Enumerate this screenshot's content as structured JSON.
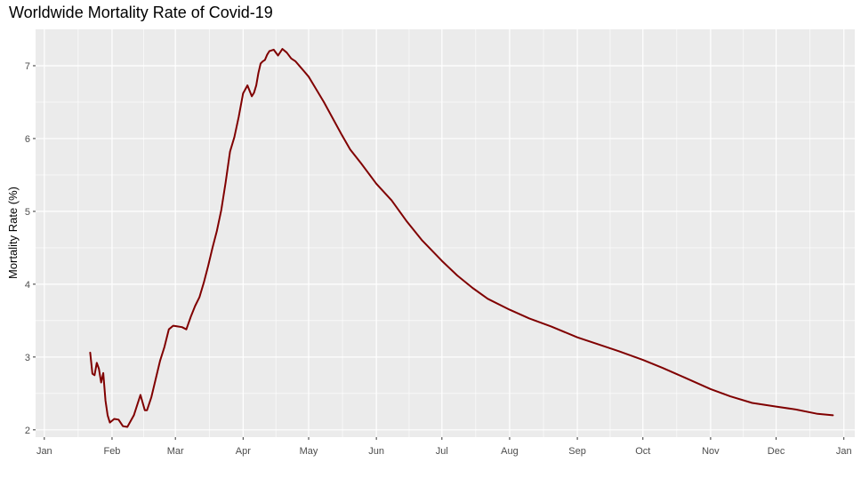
{
  "chart_data": {
    "type": "line",
    "title": "Worldwide Mortality Rate of Covid-19",
    "xlabel": "",
    "ylabel": "Mortality Rate (%)",
    "x_type": "date",
    "xlim": [
      "2019-12-28",
      "2021-01-06"
    ],
    "ylim": [
      1.9,
      7.5
    ],
    "x_ticks": [
      "Jan",
      "Feb",
      "Mar",
      "Apr",
      "May",
      "Jun",
      "Jul",
      "Aug",
      "Sep",
      "Oct",
      "Nov",
      "Dec",
      "Jan"
    ],
    "x_tick_dates": [
      "2020-01-01",
      "2020-02-01",
      "2020-03-01",
      "2020-04-01",
      "2020-05-01",
      "2020-06-01",
      "2020-07-01",
      "2020-08-01",
      "2020-09-01",
      "2020-10-01",
      "2020-11-01",
      "2020-12-01",
      "2021-01-01"
    ],
    "y_ticks": [
      2,
      3,
      4,
      5,
      6,
      7
    ],
    "grid": true,
    "legend": "none",
    "colors": {
      "line": "#800000",
      "panel": "#ebebeb",
      "grid": "#ffffff",
      "background": "#ffffff"
    },
    "series": [
      {
        "x": [
          "2020-01-22",
          "2020-01-23",
          "2020-01-24",
          "2020-01-25",
          "2020-01-26",
          "2020-01-27",
          "2020-01-28",
          "2020-01-29",
          "2020-01-30",
          "2020-01-31",
          "2020-02-02",
          "2020-02-04",
          "2020-02-06",
          "2020-02-08",
          "2020-02-11",
          "2020-02-14",
          "2020-02-16",
          "2020-02-17",
          "2020-02-19",
          "2020-02-21",
          "2020-02-23",
          "2020-02-25",
          "2020-02-27",
          "2020-02-29",
          "2020-03-02",
          "2020-03-04",
          "2020-03-06",
          "2020-03-08",
          "2020-03-10",
          "2020-03-12",
          "2020-03-14",
          "2020-03-16",
          "2020-03-18",
          "2020-03-20",
          "2020-03-22",
          "2020-03-24",
          "2020-03-26",
          "2020-03-28",
          "2020-03-30",
          "2020-04-01",
          "2020-04-03",
          "2020-04-05",
          "2020-04-06",
          "2020-04-07",
          "2020-04-08",
          "2020-04-09",
          "2020-04-10",
          "2020-04-11",
          "2020-04-12",
          "2020-04-13",
          "2020-04-15",
          "2020-04-17",
          "2020-04-19",
          "2020-04-21",
          "2020-04-23",
          "2020-04-25",
          "2020-04-27",
          "2020-04-29",
          "2020-05-01",
          "2020-05-04",
          "2020-05-08",
          "2020-05-12",
          "2020-05-16",
          "2020-05-20",
          "2020-05-25",
          "2020-06-01",
          "2020-06-08",
          "2020-06-15",
          "2020-06-22",
          "2020-07-01",
          "2020-07-08",
          "2020-07-15",
          "2020-07-22",
          "2020-08-01",
          "2020-08-10",
          "2020-08-20",
          "2020-09-01",
          "2020-09-10",
          "2020-09-20",
          "2020-10-01",
          "2020-10-10",
          "2020-10-20",
          "2020-11-01",
          "2020-11-10",
          "2020-11-20",
          "2020-12-01",
          "2020-12-10",
          "2020-12-20",
          "2020-12-27"
        ],
        "values": [
          3.06,
          2.77,
          2.75,
          2.92,
          2.84,
          2.65,
          2.78,
          2.4,
          2.2,
          2.1,
          2.15,
          2.14,
          2.05,
          2.04,
          2.2,
          2.48,
          2.27,
          2.27,
          2.45,
          2.7,
          2.95,
          3.14,
          3.38,
          3.43,
          3.42,
          3.41,
          3.38,
          3.55,
          3.7,
          3.82,
          4.02,
          4.25,
          4.5,
          4.73,
          5.02,
          5.4,
          5.82,
          6.02,
          6.3,
          6.62,
          6.73,
          6.58,
          6.63,
          6.73,
          6.9,
          7.03,
          7.06,
          7.08,
          7.15,
          7.2,
          7.22,
          7.14,
          7.23,
          7.18,
          7.1,
          7.06,
          6.99,
          6.92,
          6.85,
          6.7,
          6.5,
          6.28,
          6.06,
          5.85,
          5.66,
          5.38,
          5.15,
          4.86,
          4.6,
          4.32,
          4.12,
          3.95,
          3.8,
          3.65,
          3.53,
          3.42,
          3.27,
          3.18,
          3.08,
          2.96,
          2.85,
          2.72,
          2.56,
          2.46,
          2.37,
          2.32,
          2.28,
          2.22,
          2.2
        ]
      }
    ]
  }
}
